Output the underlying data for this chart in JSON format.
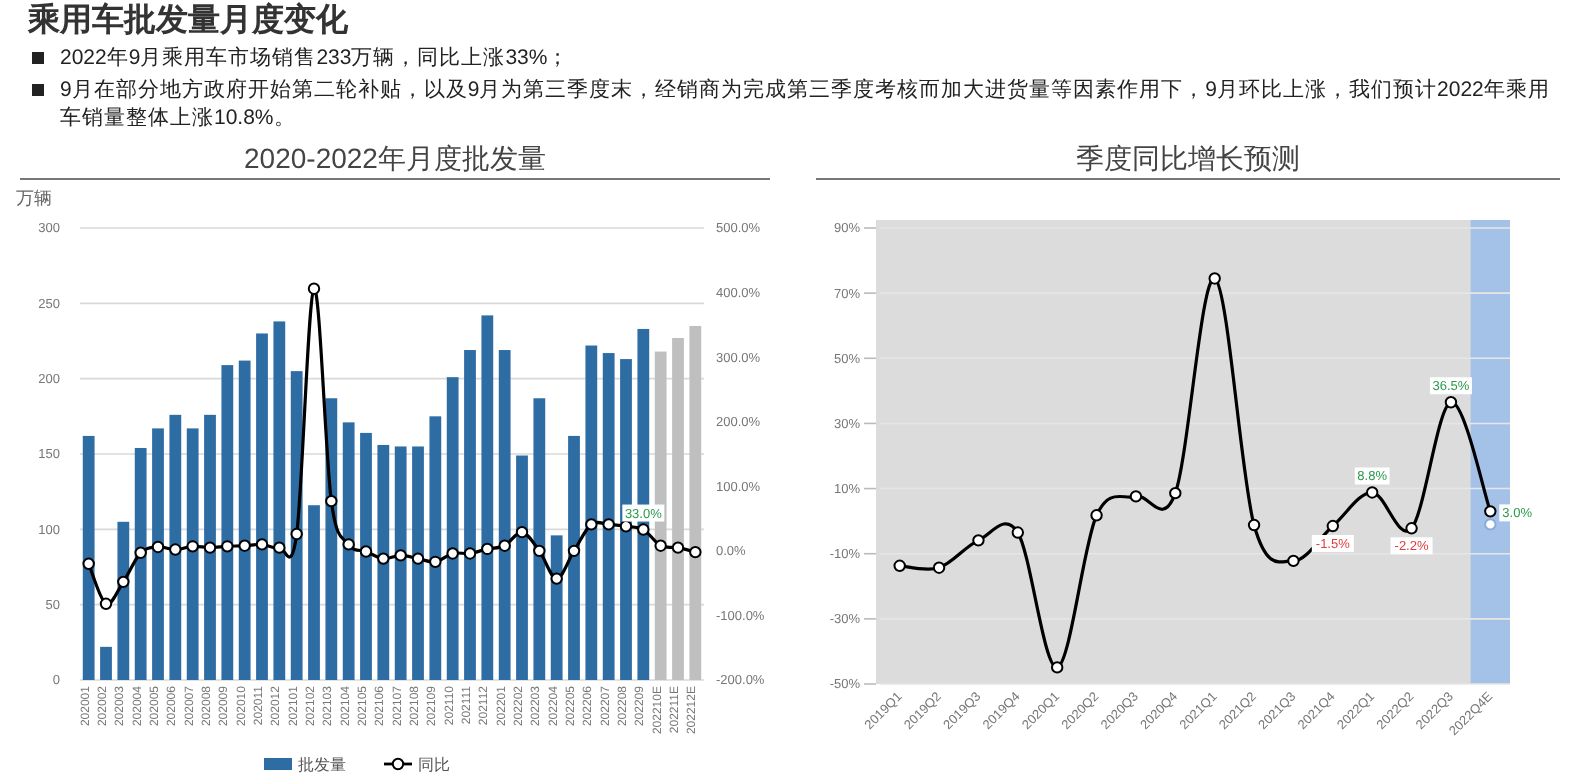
{
  "chart_data": [
    {
      "type": "other",
      "title": "乘用车批发量月度变化",
      "annotations": [
        "2022年9月乘用车市场销售233万辆，同比上涨33%；",
        "9月在部分地方政府开始第二轮补贴，以及9月为第三季度末，经销商为完成第三季度考核而加大进货量等因素作用下，9月环比上涨，我们预计2022年乘用车销量整体上涨10.8%。"
      ]
    },
    {
      "type": "bar",
      "title": "2020-2022年月度批发量",
      "ylabel": "万辆",
      "categories": [
        "202001",
        "202002",
        "202003",
        "202004",
        "202005",
        "202006",
        "202007",
        "202008",
        "202009",
        "202010",
        "202011",
        "202012",
        "202101",
        "202102",
        "202103",
        "202104",
        "202105",
        "202106",
        "202107",
        "202108",
        "202109",
        "202110",
        "202111",
        "202112",
        "202201",
        "202202",
        "202203",
        "202204",
        "202205",
        "202206",
        "202207",
        "202208",
        "202209",
        "202210E",
        "202211E",
        "202212E"
      ],
      "series": [
        {
          "name": "批发量",
          "type": "bar",
          "colors": [
            "#2e6da4",
            "#2e6da4",
            "#2e6da4",
            "#2e6da4",
            "#2e6da4",
            "#2e6da4",
            "#2e6da4",
            "#2e6da4",
            "#2e6da4",
            "#2e6da4",
            "#2e6da4",
            "#2e6da4",
            "#2e6da4",
            "#2e6da4",
            "#2e6da4",
            "#2e6da4",
            "#2e6da4",
            "#2e6da4",
            "#2e6da4",
            "#2e6da4",
            "#2e6da4",
            "#2e6da4",
            "#2e6da4",
            "#2e6da4",
            "#2e6da4",
            "#2e6da4",
            "#2e6da4",
            "#2e6da4",
            "#2e6da4",
            "#2e6da4",
            "#2e6da4",
            "#2e6da4",
            "#2e6da4",
            "#bfbfbf",
            "#bfbfbf",
            "#bfbfbf"
          ],
          "values": [
            162,
            22,
            105,
            154,
            167,
            176,
            167,
            176,
            209,
            212,
            230,
            238,
            205,
            116,
            187,
            171,
            164,
            156,
            155,
            155,
            175,
            201,
            219,
            242,
            219,
            149,
            187,
            96,
            162,
            222,
            217,
            213,
            233,
            218,
            227,
            235
          ]
        },
        {
          "name": "同比",
          "type": "line",
          "axis": "y2",
          "color": "#000000",
          "values": [
            -20,
            -82,
            -48,
            -3,
            6,
            2,
            7,
            5,
            7,
            8,
            10,
            5,
            26,
            406,
            77,
            10,
            -1,
            -12,
            -7,
            -12,
            -17,
            -4,
            -4,
            3,
            8,
            29,
            0,
            -43,
            0,
            41,
            41,
            38,
            33,
            8,
            5,
            -2
          ],
          "value_labels": [
            null,
            null,
            null,
            null,
            null,
            null,
            null,
            null,
            null,
            null,
            null,
            null,
            null,
            null,
            null,
            null,
            null,
            null,
            null,
            null,
            null,
            null,
            null,
            null,
            null,
            null,
            null,
            null,
            null,
            null,
            null,
            null,
            "33.0%",
            null,
            null,
            null
          ]
        }
      ],
      "ylim": [
        0,
        300
      ],
      "yticks": [
        0,
        50,
        100,
        150,
        200,
        250,
        300
      ],
      "y2lim": [
        -200,
        500
      ],
      "y2ticks": [
        {
          "value": -200,
          "label": "-200.0%"
        },
        {
          "value": -100,
          "label": "-100.0%"
        },
        {
          "value": 0,
          "label": "0.0%"
        },
        {
          "value": 100,
          "label": "100.0%"
        },
        {
          "value": 200,
          "label": "200.0%"
        },
        {
          "value": 300,
          "label": "300.0%"
        },
        {
          "value": 400,
          "label": "400.0%"
        },
        {
          "value": 500,
          "label": "500.0%"
        }
      ],
      "grid": "y",
      "legend": "bottom",
      "marker": "circle"
    },
    {
      "type": "line",
      "title": "季度同比增长预测",
      "categories": [
        "2019Q1",
        "2019Q2",
        "2019Q3",
        "2019Q4",
        "2020Q1",
        "2020Q2",
        "2020Q3",
        "2020Q4",
        "2021Q1",
        "2021Q2",
        "2021Q3",
        "2021Q4",
        "2022Q1",
        "2022Q2",
        "2022Q3",
        "2022Q4E"
      ],
      "series": [
        {
          "color": "#000000",
          "values": [
            -13.7,
            -14.3,
            -5.9,
            -3.5,
            -44.9,
            1.8,
            7.6,
            8.6,
            74.5,
            -1.2,
            -12.2,
            -1.5,
            8.8,
            -2.2,
            36.5,
            3.0
          ],
          "value_labels": [
            null,
            null,
            null,
            null,
            null,
            null,
            null,
            null,
            null,
            null,
            null,
            "-1.5%",
            "8.8%",
            "-2.2%",
            "36.5%",
            "3.0%"
          ]
        },
        {
          "type": "scatter",
          "color": "#8eaadb",
          "values": [
            null,
            null,
            null,
            null,
            null,
            null,
            null,
            null,
            null,
            null,
            null,
            null,
            null,
            null,
            null,
            -1.0
          ]
        }
      ],
      "ylim": [
        -50,
        90
      ],
      "yticks": [
        {
          "value": -50,
          "label": "-50%"
        },
        {
          "value": -30,
          "label": "-30%"
        },
        {
          "value": -10,
          "label": "-10%"
        },
        {
          "value": 10,
          "label": "10%"
        },
        {
          "value": 30,
          "label": "30%"
        },
        {
          "value": 50,
          "label": "50%"
        },
        {
          "value": 70,
          "label": "70%"
        },
        {
          "value": 90,
          "label": "90%"
        }
      ],
      "grid": "y",
      "marker": "circle",
      "bands": [
        {
          "axis": "x",
          "from": "2022Q4E",
          "to": "2022Q4E",
          "color": "#a4c2e8"
        }
      ]
    }
  ]
}
